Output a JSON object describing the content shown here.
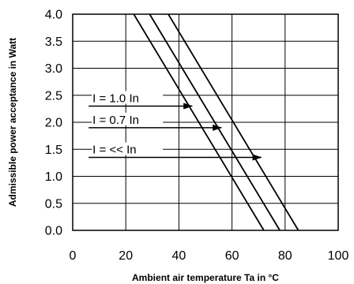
{
  "chart_data": {
    "type": "line",
    "title": "",
    "xlabel": "Ambient air temperature Ta in °C",
    "ylabel": "Admissible power acceptance in Watt",
    "xlim": [
      0,
      100
    ],
    "ylim": [
      0.0,
      4.0
    ],
    "x_ticks": [
      "0",
      "20",
      "40",
      "60",
      "80",
      "100"
    ],
    "y_ticks": [
      "0.0",
      "0.5",
      "1.0",
      "1.5",
      "2.0",
      "2.5",
      "3.0",
      "3.5",
      "4.0"
    ],
    "grid": true,
    "series": [
      {
        "name": "I = 1.0 In",
        "x": [
          23,
          72
        ],
        "y": [
          4.0,
          0.0
        ]
      },
      {
        "name": "I = 0.7 In",
        "x": [
          29,
          78
        ],
        "y": [
          4.0,
          0.0
        ]
      },
      {
        "name": "I = << In",
        "x": [
          36,
          85
        ],
        "y": [
          4.0,
          0.0
        ]
      }
    ],
    "annotations": [
      {
        "text": "I = 1.0 In",
        "arrow_from": [
          6,
          2.3
        ],
        "arrow_to": [
          45,
          2.3
        ]
      },
      {
        "text": "I = 0.7 In",
        "arrow_from": [
          6,
          1.9
        ],
        "arrow_to": [
          56,
          1.9
        ]
      },
      {
        "text": "I = << In",
        "arrow_from": [
          6,
          1.35
        ],
        "arrow_to": [
          71,
          1.35
        ]
      }
    ]
  }
}
